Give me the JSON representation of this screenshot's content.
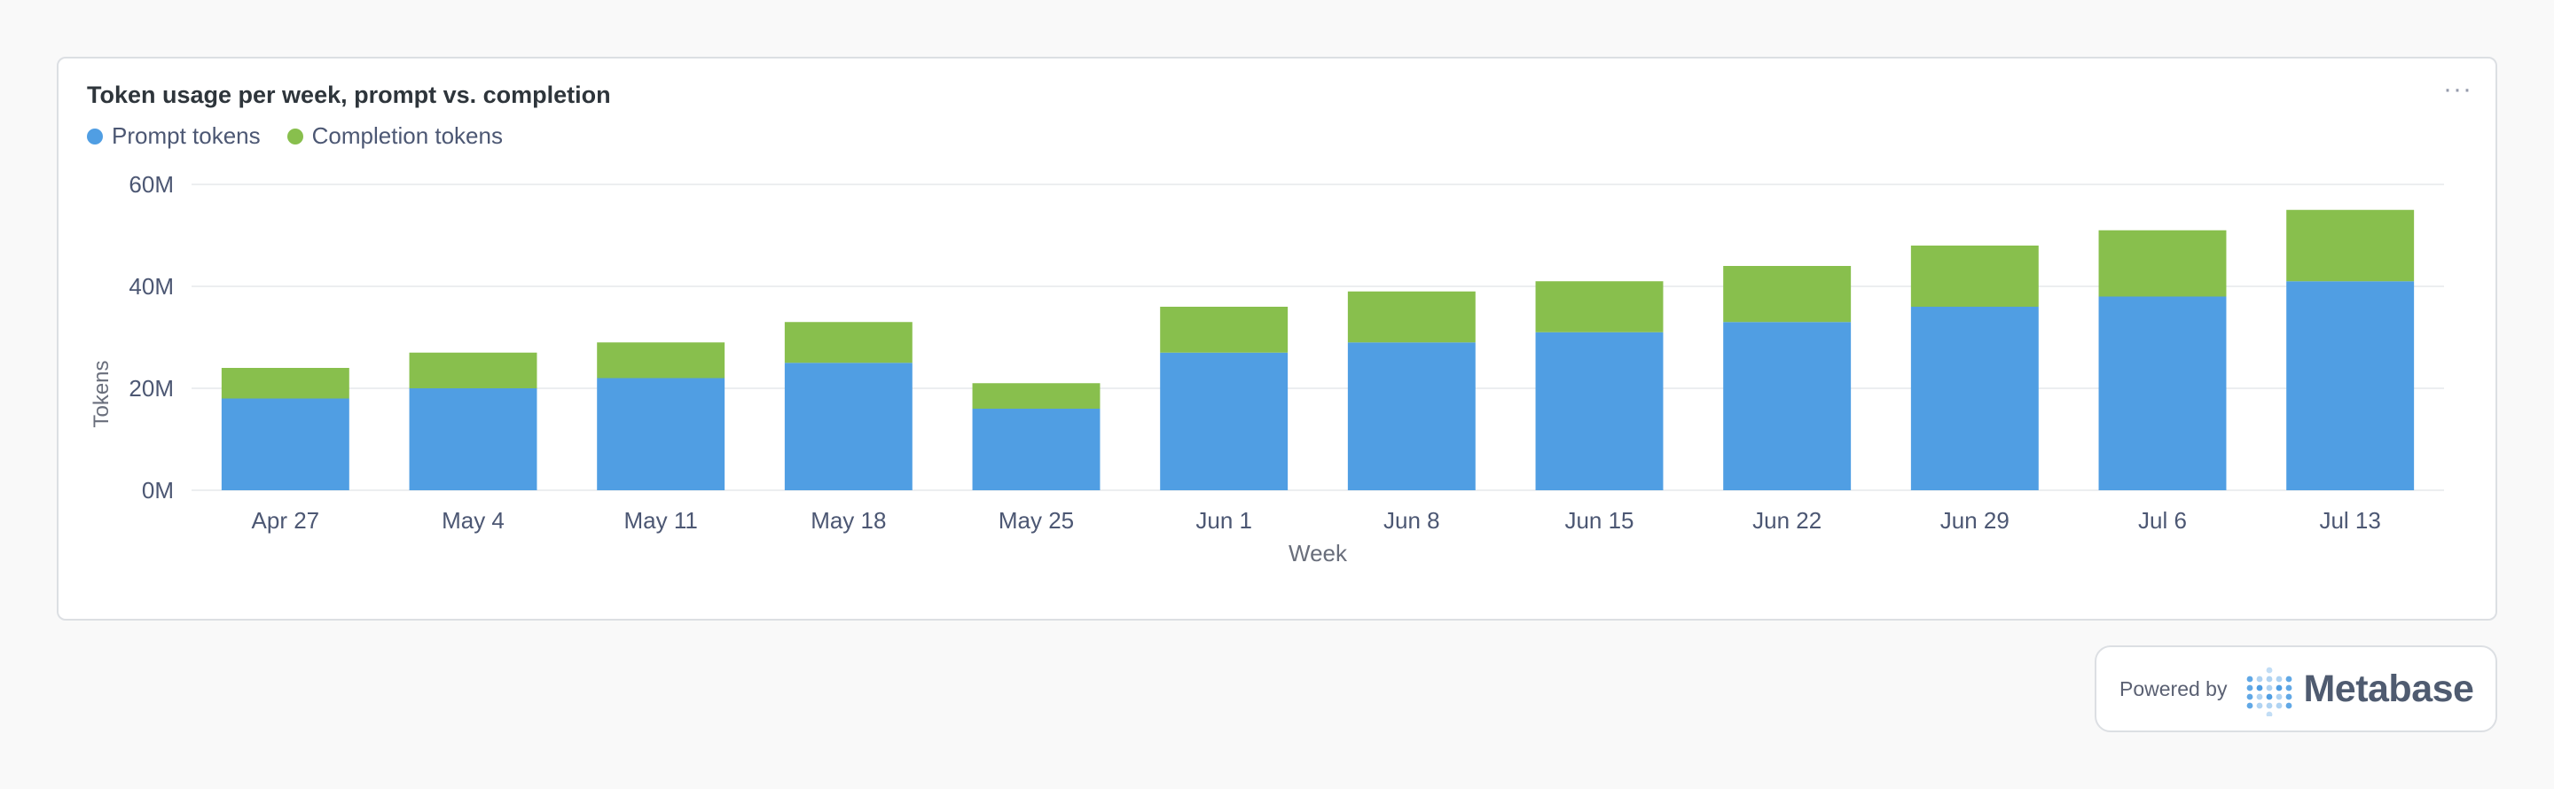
{
  "card": {
    "title": "Token usage per week, prompt vs. completion",
    "menu_icon": "ellipsis-icon"
  },
  "colors": {
    "prompt": "#509ee3",
    "completion": "#88bf4d",
    "grid": "#eceef0",
    "axis_text": "#4c5773",
    "axis_label": "#696e7b"
  },
  "footer": {
    "powered_by": "Powered by",
    "brand": "Metabase"
  },
  "chart_data": {
    "type": "bar",
    "stacked": true,
    "categories": [
      "Apr 27",
      "May 4",
      "May 11",
      "May 18",
      "May 25",
      "Jun 1",
      "Jun 8",
      "Jun 15",
      "Jun 22",
      "Jun 29",
      "Jul 6",
      "Jul 13"
    ],
    "series": [
      {
        "name": "Prompt tokens",
        "values": [
          18000000,
          20000000,
          22000000,
          25000000,
          16000000,
          27000000,
          29000000,
          31000000,
          33000000,
          36000000,
          38000000,
          41000000
        ]
      },
      {
        "name": "Completion tokens",
        "values": [
          6000000,
          7000000,
          7000000,
          8000000,
          5000000,
          9000000,
          10000000,
          10000000,
          11000000,
          12000000,
          13000000,
          14000000
        ]
      }
    ],
    "title": "Token usage per week, prompt vs. completion",
    "xlabel": "Week",
    "ylabel": "Tokens",
    "ylim": [
      0,
      60000000
    ],
    "yticks": [
      0,
      20000000,
      40000000,
      60000000
    ],
    "ytick_labels": [
      "0M",
      "20M",
      "40M",
      "60M"
    ],
    "grid": true,
    "legend": "top-left"
  }
}
